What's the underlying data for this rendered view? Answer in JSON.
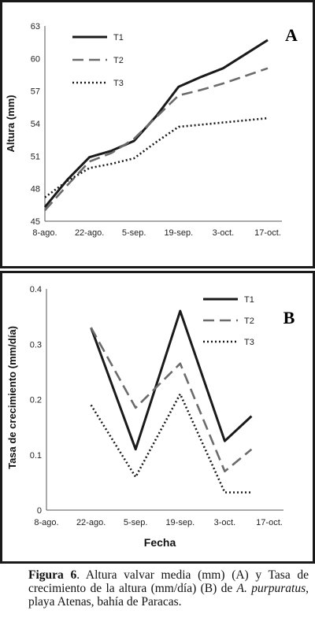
{
  "chart_data": [
    {
      "type": "line",
      "panel_label": "A",
      "ylabel": "Altura (mm)",
      "xlabel": "",
      "categories": [
        "8-ago.",
        "22-ago.",
        "5-sep.",
        "19-sep.",
        "3-oct.",
        "17-oct."
      ],
      "x": [
        0,
        0.5,
        1,
        1.5,
        2,
        2.5,
        3,
        3.5,
        4,
        4.5,
        5
      ],
      "ylim": [
        45,
        63
      ],
      "yticks": [
        "45",
        "48",
        "51",
        "54",
        "57",
        "60",
        "63"
      ],
      "series": [
        {
          "name": "T1",
          "style": "solid",
          "color": "#1a1a1a",
          "values": [
            46.3,
            48.8,
            50.9,
            51.5,
            52.4,
            54.7,
            57.4,
            58.3,
            59.1,
            60.4,
            61.7
          ]
        },
        {
          "name": "T2",
          "style": "dashed",
          "color": "#6b6b6b",
          "values": [
            46.0,
            48.3,
            50.5,
            51.3,
            52.6,
            54.6,
            56.6,
            57.1,
            57.7,
            58.4,
            59.1
          ]
        },
        {
          "name": "T3",
          "style": "dotted",
          "color": "#1a1a1a",
          "values": [
            47.2,
            48.7,
            49.9,
            50.3,
            50.8,
            52.3,
            53.7,
            53.9,
            54.1,
            54.3,
            54.5
          ]
        }
      ],
      "legend": "top-left"
    },
    {
      "type": "line",
      "panel_label": "B",
      "ylabel": "Tasa de crecimiento (mm/día)",
      "xlabel": "Fecha",
      "categories": [
        "8-ago.",
        "22-ago.",
        "5-sep.",
        "19-sep.",
        "3-oct.",
        "17-oct."
      ],
      "x": [
        1,
        2,
        3,
        4,
        4.6
      ],
      "ylim": [
        0,
        0.4
      ],
      "yticks": [
        "0",
        "0.1",
        "0.2",
        "0.3",
        "0.4"
      ],
      "series": [
        {
          "name": "T1",
          "style": "solid",
          "color": "#1a1a1a",
          "values": [
            0.33,
            0.11,
            0.36,
            0.125,
            0.17
          ]
        },
        {
          "name": "T2",
          "style": "dashed",
          "color": "#6b6b6b",
          "values": [
            0.33,
            0.185,
            0.265,
            0.07,
            0.11
          ]
        },
        {
          "name": "T3",
          "style": "dotted",
          "color": "#1a1a1a",
          "values": [
            0.19,
            0.06,
            0.21,
            0.032,
            0.032
          ]
        }
      ],
      "legend": "top-right"
    }
  ],
  "caption": {
    "figure_label": "Figura 6",
    "text_1": ". Altura valvar media (mm) (A) y Tasa de crecimiento de la altura (mm/día) (B) de ",
    "species": "A. purpuratus",
    "text_2": ", playa Atenas, bahía de Paracas."
  }
}
